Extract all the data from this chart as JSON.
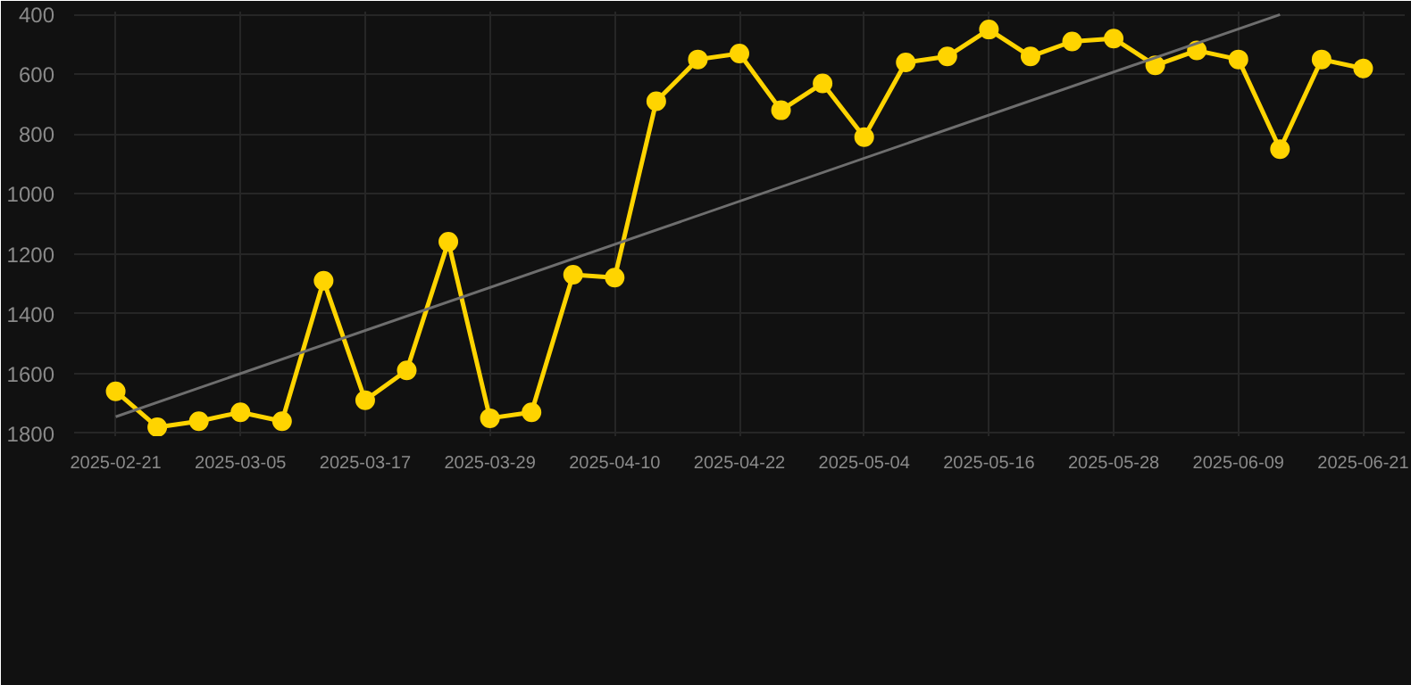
{
  "chart_data": {
    "type": "line",
    "x": [
      "2025-02-21",
      "2025-02-25",
      "2025-03-01",
      "2025-03-05",
      "2025-03-09",
      "2025-03-13",
      "2025-03-17",
      "2025-03-21",
      "2025-03-25",
      "2025-03-29",
      "2025-04-02",
      "2025-04-06",
      "2025-04-10",
      "2025-04-14",
      "2025-04-18",
      "2025-04-22",
      "2025-04-26",
      "2025-04-30",
      "2025-05-04",
      "2025-05-08",
      "2025-05-12",
      "2025-05-16",
      "2025-05-20",
      "2025-05-24",
      "2025-05-28",
      "2025-06-01",
      "2025-06-05",
      "2025-06-09",
      "2025-06-13",
      "2025-06-17",
      "2025-06-21"
    ],
    "series": [
      {
        "color": "#ffd400",
        "values": [
          1660,
          1780,
          1760,
          1730,
          1760,
          1290,
          1690,
          1590,
          1160,
          1750,
          1730,
          1270,
          1280,
          690,
          550,
          530,
          720,
          630,
          810,
          560,
          540,
          450,
          540,
          490,
          480,
          570,
          520,
          550,
          850,
          550,
          580
        ]
      },
      {
        "type": "line",
        "color": "#6e6e6e",
        "marker": "none",
        "x": [
          "2025-02-21",
          "2025-06-13"
        ],
        "values": [
          1745,
          400
        ]
      }
    ],
    "marker": "circle",
    "line_style": "solid",
    "grid": true,
    "xlim": [
      "2025-02-17",
      "2025-06-25"
    ],
    "ylim": [
      1810,
      390
    ],
    "xticks": [
      "2025-02-21",
      "2025-03-05",
      "2025-03-17",
      "2025-03-29",
      "2025-04-10",
      "2025-04-22",
      "2025-05-04",
      "2025-05-16",
      "2025-05-28",
      "2025-06-09",
      "2025-06-21"
    ],
    "yticks": [
      400,
      600,
      800,
      1000,
      1200,
      1400,
      1600,
      1800
    ]
  }
}
